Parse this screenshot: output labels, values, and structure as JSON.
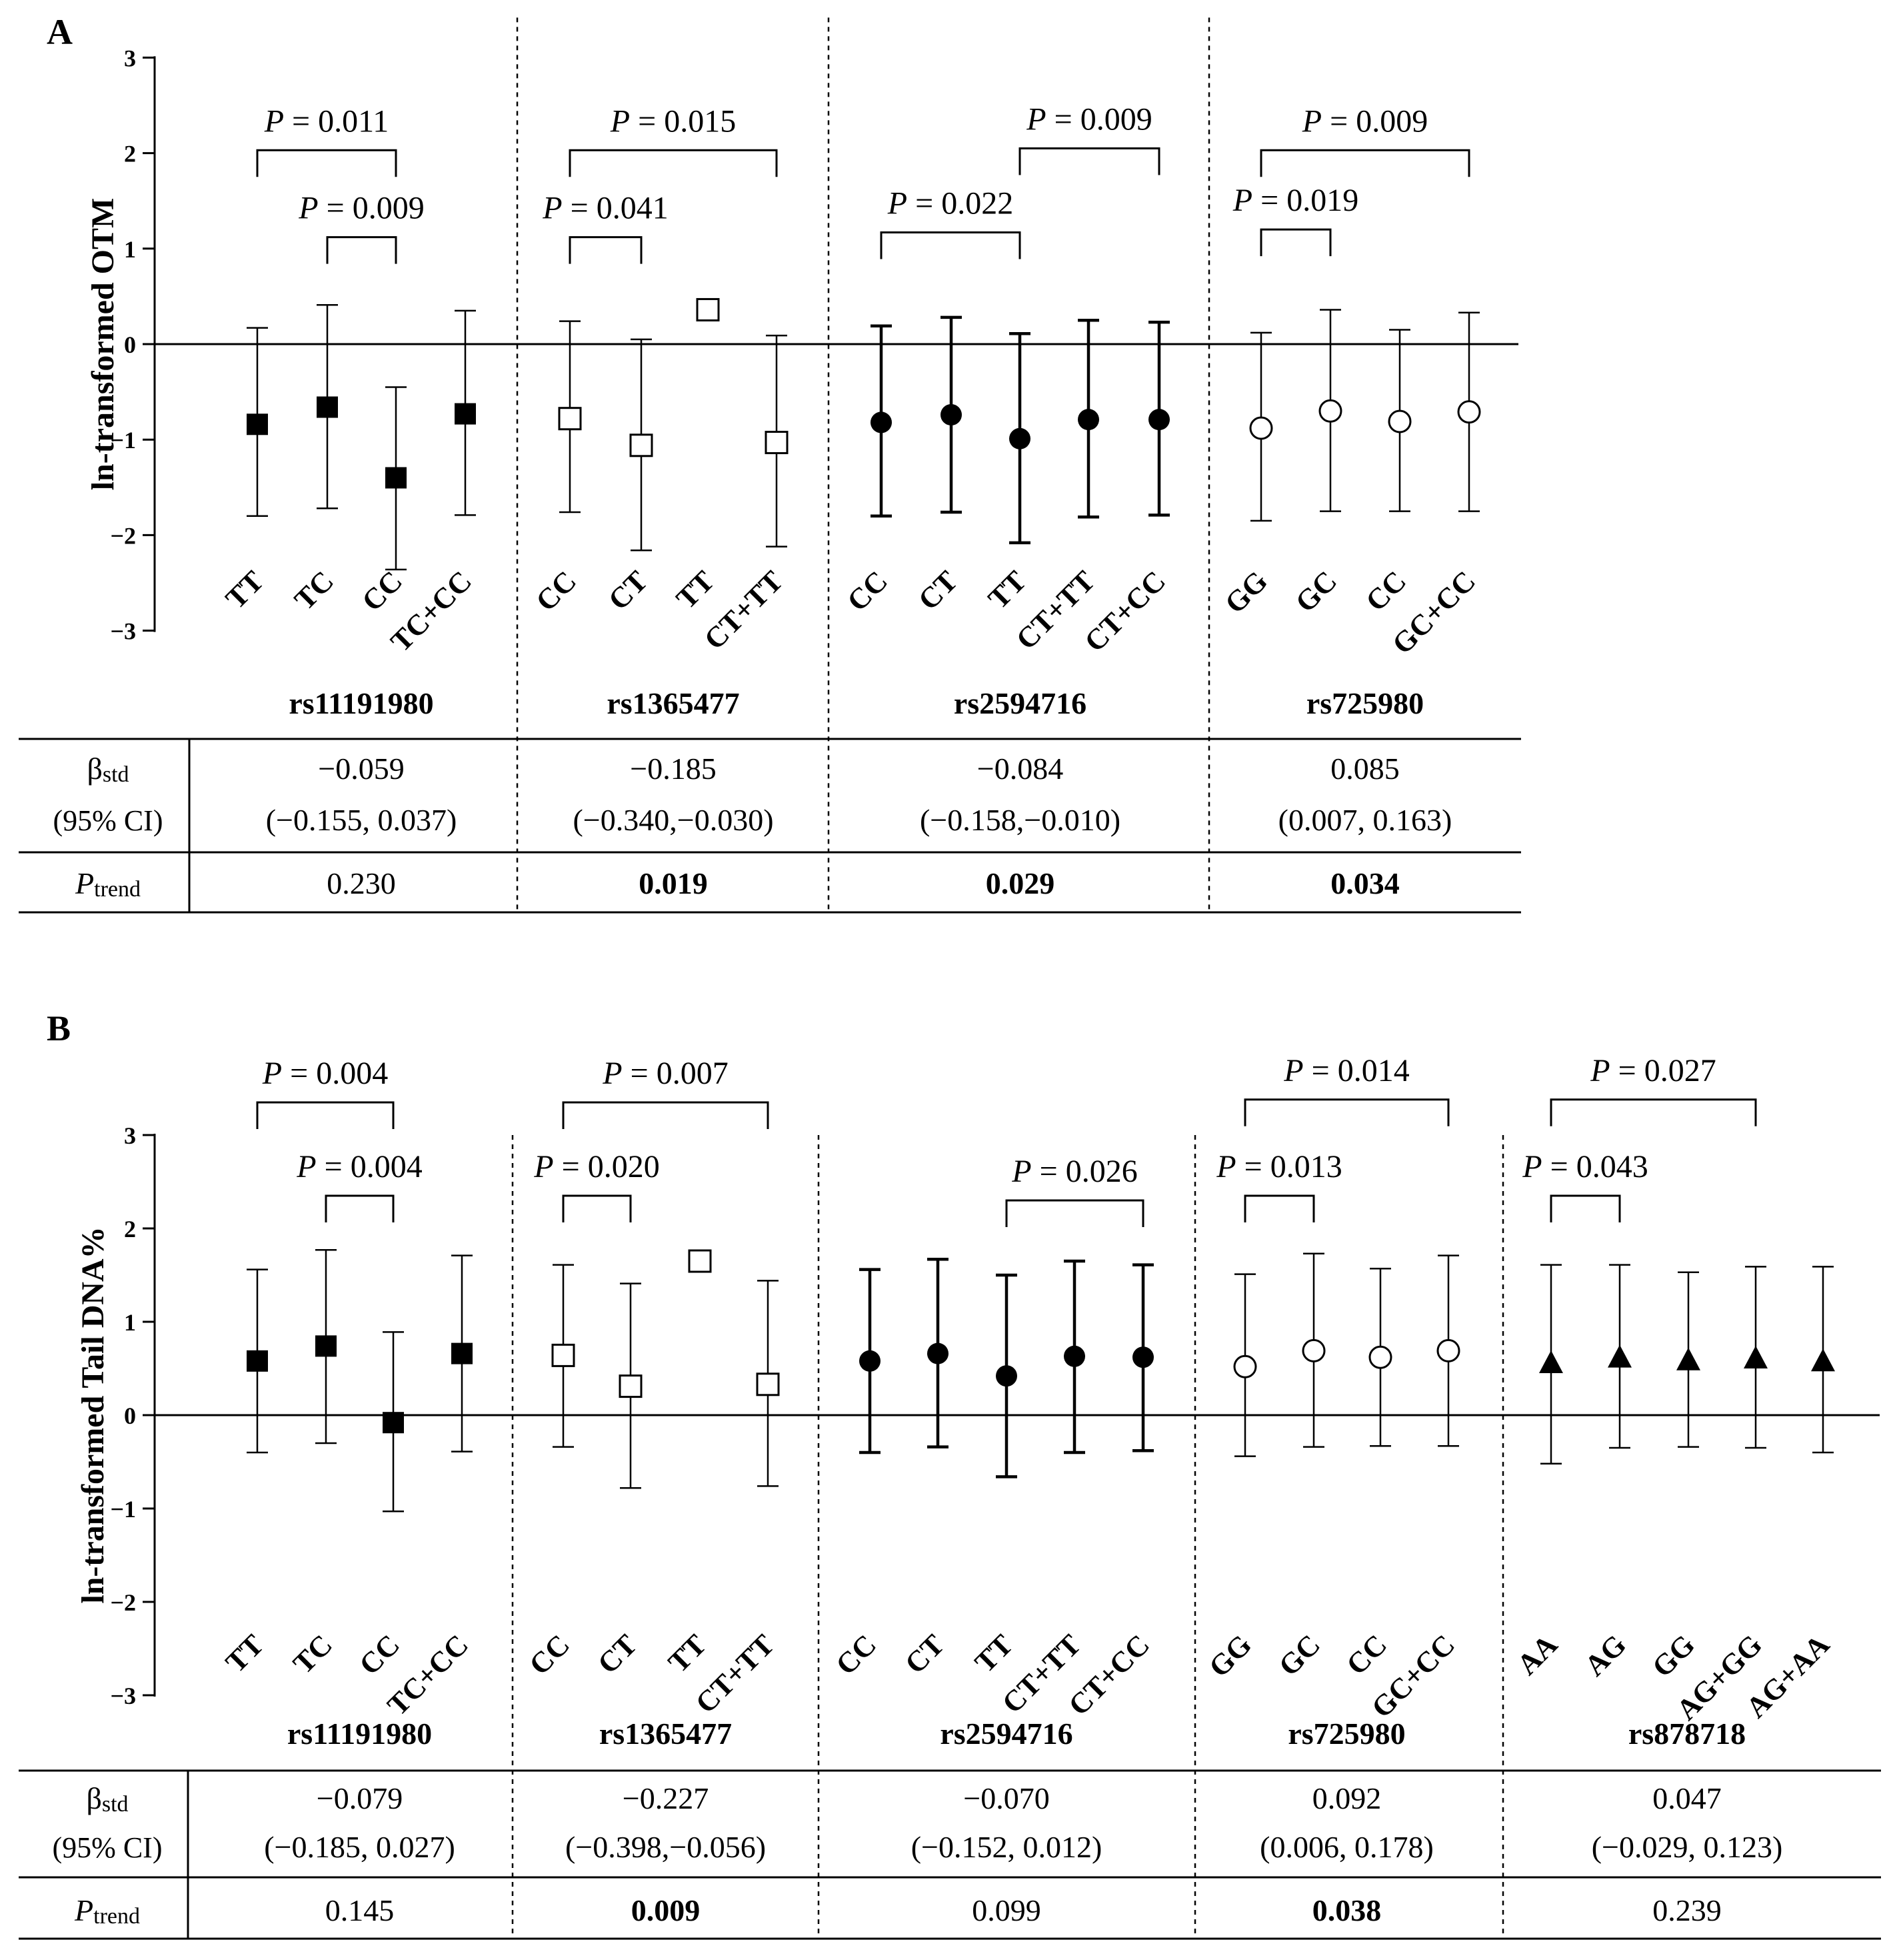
{
  "chart_data": [
    {
      "panel": "A",
      "type": "errorbar",
      "ylabel": "ln-transformed OTM",
      "ylim": [
        -3,
        3
      ],
      "yticks": [
        3,
        2,
        1,
        0,
        -1,
        -2,
        -3
      ],
      "ytick_labels": [
        "3",
        "2",
        "1",
        "0",
        "−1",
        "−2",
        "−3"
      ],
      "groups": [
        {
          "snp": "rs11191980",
          "marker": "square-filled",
          "points": [
            {
              "label": "TT",
              "mean": -0.84,
              "lo": -1.8,
              "hi": 0.17
            },
            {
              "label": "TC",
              "mean": -0.66,
              "lo": -1.72,
              "hi": 0.41
            },
            {
              "label": "CC",
              "mean": -1.4,
              "lo": -2.36,
              "hi": -0.45
            },
            {
              "label": "TC+CC",
              "mean": -0.73,
              "lo": -1.79,
              "hi": 0.35
            }
          ],
          "brackets": [
            {
              "from": 0,
              "to": 2,
              "level": 2.03,
              "text": "P = 0.011"
            },
            {
              "from": 1,
              "to": 2,
              "level": 1.12,
              "text": "P = 0.009"
            }
          ],
          "beta": "−0.059",
          "ci": "(−0.155, 0.037)",
          "p_trend": "0.230",
          "p_trend_bold": false
        },
        {
          "snp": "rs1365477",
          "marker": "square-open",
          "points": [
            {
              "label": "CC",
              "mean": -0.78,
              "lo": -1.76,
              "hi": 0.24
            },
            {
              "label": "CT",
              "mean": -1.06,
              "lo": -2.16,
              "hi": 0.05
            },
            {
              "label": "TT",
              "mean": 0.36,
              "lo": null,
              "hi": null
            },
            {
              "label": "CT+TT",
              "mean": -1.03,
              "lo": -2.12,
              "hi": 0.09
            }
          ],
          "brackets": [
            {
              "from": 0,
              "to": 3,
              "level": 2.03,
              "text": "P = 0.015"
            },
            {
              "from": 0,
              "to": 1,
              "level": 1.12,
              "text": "P = 0.041"
            }
          ],
          "beta": "−0.185",
          "ci": "(−0.340,−0.030)",
          "p_trend": "0.019",
          "p_trend_bold": true
        },
        {
          "snp": "rs2594716",
          "marker": "circle-filled",
          "points": [
            {
              "label": "CC",
              "mean": -0.82,
              "lo": -1.8,
              "hi": 0.19
            },
            {
              "label": "CT",
              "mean": -0.74,
              "lo": -1.76,
              "hi": 0.28
            },
            {
              "label": "TT",
              "mean": -0.99,
              "lo": -2.08,
              "hi": 0.11
            },
            {
              "label": "CT+TT",
              "mean": -0.79,
              "lo": -1.81,
              "hi": 0.25
            },
            {
              "label": "CT+CC",
              "mean": -0.79,
              "lo": -1.79,
              "hi": 0.23
            }
          ],
          "brackets": [
            {
              "from": 2,
              "to": 4,
              "level": 2.05,
              "text": "P = 0.009"
            },
            {
              "from": 0,
              "to": 2,
              "level": 1.17,
              "text": "P = 0.022"
            }
          ],
          "beta": "−0.084",
          "ci": "(−0.158,−0.010)",
          "p_trend": "0.029",
          "p_trend_bold": true
        },
        {
          "snp": "rs725980",
          "marker": "circle-open",
          "points": [
            {
              "label": "GG",
              "mean": -0.88,
              "lo": -1.85,
              "hi": 0.12
            },
            {
              "label": "GC",
              "mean": -0.7,
              "lo": -1.75,
              "hi": 0.36
            },
            {
              "label": "CC",
              "mean": -0.81,
              "lo": -1.75,
              "hi": 0.15
            },
            {
              "label": "GC+CC",
              "mean": -0.71,
              "lo": -1.75,
              "hi": 0.33
            }
          ],
          "brackets": [
            {
              "from": 0,
              "to": 3,
              "level": 2.03,
              "text": "P = 0.009"
            },
            {
              "from": 0,
              "to": 1,
              "level": 1.2,
              "text": "P = 0.019"
            }
          ],
          "beta": "0.085",
          "ci": "(0.007, 0.163)",
          "p_trend": "0.034",
          "p_trend_bold": true
        }
      ],
      "table": {
        "beta_label": "β",
        "beta_sub": "std",
        "ci_label": "(95% CI)",
        "p_label": "P",
        "p_sub": "trend"
      }
    },
    {
      "panel": "B",
      "type": "errorbar",
      "ylabel": "ln-transformed Tail DNA%",
      "ylim": [
        -3,
        3
      ],
      "yticks": [
        3,
        2,
        1,
        0,
        -1,
        -2,
        -3
      ],
      "ytick_labels": [
        "3",
        "2",
        "1",
        "0",
        "−1",
        "−2",
        "−3"
      ],
      "groups": [
        {
          "snp": "rs11191980",
          "marker": "square-filled",
          "points": [
            {
              "label": "TT",
              "mean": 0.58,
              "lo": -0.4,
              "hi": 1.56
            },
            {
              "label": "TC",
              "mean": 0.74,
              "lo": -0.3,
              "hi": 1.77
            },
            {
              "label": "CC",
              "mean": -0.08,
              "lo": -1.03,
              "hi": 0.89
            },
            {
              "label": "TC+CC",
              "mean": 0.66,
              "lo": -0.39,
              "hi": 1.71
            }
          ],
          "brackets": [
            {
              "from": 0,
              "to": 2,
              "level": 3.35,
              "text": "P = 0.004"
            },
            {
              "from": 1,
              "to": 2,
              "level": 2.35,
              "text": "P = 0.004"
            }
          ],
          "beta": "−0.079",
          "ci": "(−0.185, 0.027)",
          "p_trend": "0.145",
          "p_trend_bold": false
        },
        {
          "snp": "rs1365477",
          "marker": "square-open",
          "points": [
            {
              "label": "CC",
              "mean": 0.64,
              "lo": -0.34,
              "hi": 1.61
            },
            {
              "label": "CT",
              "mean": 0.31,
              "lo": -0.78,
              "hi": 1.41
            },
            {
              "label": "TT",
              "mean": 1.65,
              "lo": null,
              "hi": null
            },
            {
              "label": "CT+TT",
              "mean": 0.33,
              "lo": -0.76,
              "hi": 1.44
            }
          ],
          "brackets": [
            {
              "from": 0,
              "to": 3,
              "level": 3.35,
              "text": "P = 0.007"
            },
            {
              "from": 0,
              "to": 1,
              "level": 2.35,
              "text": "P = 0.020"
            }
          ],
          "beta": "−0.227",
          "ci": "(−0.398,−0.056)",
          "p_trend": "0.009",
          "p_trend_bold": true
        },
        {
          "snp": "rs2594716",
          "marker": "circle-filled",
          "points": [
            {
              "label": "CC",
              "mean": 0.58,
              "lo": -0.4,
              "hi": 1.56
            },
            {
              "label": "CT",
              "mean": 0.66,
              "lo": -0.34,
              "hi": 1.67
            },
            {
              "label": "TT",
              "mean": 0.42,
              "lo": -0.66,
              "hi": 1.5
            },
            {
              "label": "CT+TT",
              "mean": 0.63,
              "lo": -0.4,
              "hi": 1.65
            },
            {
              "label": "CT+CC",
              "mean": 0.62,
              "lo": -0.38,
              "hi": 1.61
            }
          ],
          "brackets": [
            {
              "from": 2,
              "to": 4,
              "level": 2.3,
              "text": "P = 0.026"
            }
          ],
          "beta": "−0.070",
          "ci": "(−0.152, 0.012)",
          "p_trend": "0.099",
          "p_trend_bold": false
        },
        {
          "snp": "rs725980",
          "marker": "circle-open",
          "points": [
            {
              "label": "GG",
              "mean": 0.52,
              "lo": -0.44,
              "hi": 1.51
            },
            {
              "label": "GC",
              "mean": 0.69,
              "lo": -0.34,
              "hi": 1.73
            },
            {
              "label": "CC",
              "mean": 0.62,
              "lo": -0.33,
              "hi": 1.57
            },
            {
              "label": "GC+CC",
              "mean": 0.69,
              "lo": -0.33,
              "hi": 1.71
            }
          ],
          "brackets": [
            {
              "from": 0,
              "to": 3,
              "level": 3.38,
              "text": "P = 0.014"
            },
            {
              "from": 0,
              "to": 1,
              "level": 2.35,
              "text": "P = 0.013"
            }
          ],
          "beta": "0.092",
          "ci": "(0.006, 0.178)",
          "p_trend": "0.038",
          "p_trend_bold": true
        },
        {
          "snp": "rs878718",
          "marker": "triangle-filled",
          "points": [
            {
              "label": "AA",
              "mean": 0.55,
              "lo": -0.52,
              "hi": 1.61
            },
            {
              "label": "AG",
              "mean": 0.61,
              "lo": -0.35,
              "hi": 1.61
            },
            {
              "label": "GG",
              "mean": 0.58,
              "lo": -0.34,
              "hi": 1.53
            },
            {
              "label": "AG+GG",
              "mean": 0.6,
              "lo": -0.35,
              "hi": 1.59
            },
            {
              "label": "AG+AA",
              "mean": 0.57,
              "lo": -0.4,
              "hi": 1.59
            }
          ],
          "brackets": [
            {
              "from": 0,
              "to": 3,
              "level": 3.38,
              "text": "P = 0.027"
            },
            {
              "from": 0,
              "to": 1,
              "level": 2.35,
              "text": "P = 0.043"
            }
          ],
          "beta": "0.047",
          "ci": "(−0.029, 0.123)",
          "p_trend": "0.239",
          "p_trend_bold": false
        }
      ],
      "table": {
        "beta_label": "β",
        "beta_sub": "std",
        "ci_label": "(95% CI)",
        "p_label": "P",
        "p_sub": "trend"
      }
    }
  ]
}
